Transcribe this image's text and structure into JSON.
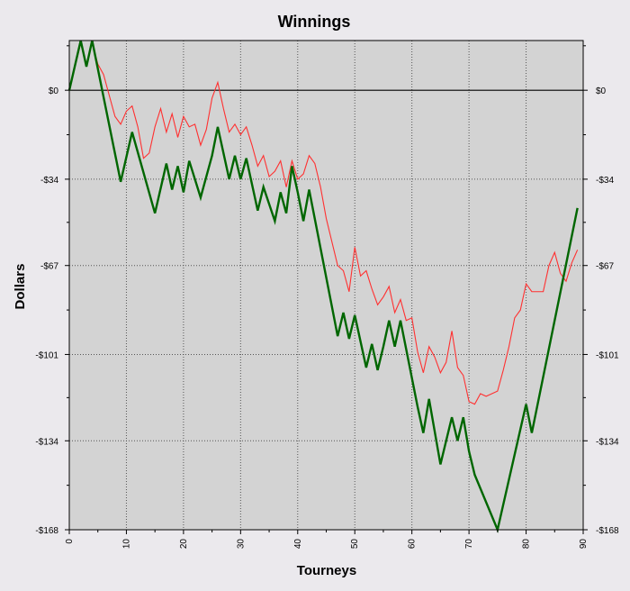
{
  "chart_data": {
    "type": "line",
    "title": "Winnings",
    "xlabel": "Tourneys",
    "ylabel": "Dollars",
    "xlim": [
      0,
      90
    ],
    "ylim": [
      -168,
      19
    ],
    "x_ticks": [
      0,
      10,
      20,
      30,
      40,
      50,
      60,
      70,
      80,
      90
    ],
    "y_ticks": [
      {
        "value": 0,
        "label": "$0"
      },
      {
        "value": -34,
        "label": "-$34"
      },
      {
        "value": -67,
        "label": "-$67"
      },
      {
        "value": -101,
        "label": "-$101"
      },
      {
        "value": -134,
        "label": "-$134"
      },
      {
        "value": -168,
        "label": "-$168"
      }
    ],
    "zero_line": 0,
    "grid": true,
    "colors": {
      "plot_background": "#d3d3d3",
      "page_background": "#ebe9ed",
      "primary_series": "#006600",
      "secondary_series": "#ff3030",
      "zero_line": "#000000",
      "grid": "#555555"
    },
    "series": [
      {
        "key": "primary",
        "color": "#006600",
        "x": [
          0,
          2,
          3,
          4,
          9,
          11,
          15,
          17,
          18,
          19,
          20,
          21,
          23,
          25,
          26,
          28,
          29,
          30,
          31,
          33,
          34,
          36,
          37,
          38,
          39,
          40,
          41,
          42,
          47,
          48,
          49,
          50,
          52,
          53,
          54,
          55,
          56,
          57,
          58,
          61,
          62,
          63,
          65,
          67,
          68,
          69,
          70,
          71,
          75,
          80,
          81,
          89
        ],
        "y": [
          0,
          19,
          9,
          19,
          -35,
          -16,
          -47,
          -28,
          -38,
          -29,
          -39,
          -27,
          -41,
          -25,
          -14,
          -34,
          -25,
          -34,
          -26,
          -46,
          -37,
          -50,
          -39,
          -47,
          -29,
          -39,
          -50,
          -38,
          -94,
          -85,
          -95,
          -86,
          -106,
          -97,
          -107,
          -98,
          -88,
          -98,
          -88,
          -121,
          -131,
          -118,
          -143,
          -125,
          -134,
          -125,
          -138,
          -147,
          -168,
          -120,
          -131,
          -45
        ]
      },
      {
        "key": "secondary",
        "color": "#ff3030",
        "x": [
          0,
          2,
          3,
          4,
          5,
          6,
          7,
          8,
          9,
          10,
          11,
          12,
          13,
          14,
          15,
          16,
          17,
          18,
          19,
          20,
          21,
          22,
          23,
          24,
          25,
          26,
          27,
          28,
          29,
          30,
          31,
          32,
          33,
          34,
          35,
          36,
          37,
          38,
          39,
          40,
          41,
          42,
          43,
          44,
          45,
          46,
          47,
          48,
          49,
          50,
          51,
          52,
          53,
          54,
          55,
          56,
          57,
          58,
          59,
          60,
          61,
          62,
          63,
          64,
          65,
          66,
          67,
          68,
          69,
          70,
          71,
          72,
          73,
          74,
          75,
          76,
          77,
          78,
          79,
          80,
          81,
          82,
          83,
          84,
          85,
          86,
          87,
          88,
          89
        ],
        "y": [
          0,
          18,
          10,
          18,
          10,
          6,
          -2,
          -10,
          -13,
          -8,
          -6,
          -14,
          -26,
          -24,
          -14,
          -7,
          -16,
          -9,
          -18,
          -10,
          -14,
          -13,
          -21,
          -15,
          -3,
          3,
          -7,
          -16,
          -13,
          -17,
          -14,
          -21,
          -29,
          -25,
          -33,
          -31,
          -27,
          -37,
          -27,
          -34,
          -32,
          -25,
          -28,
          -37,
          -49,
          -58,
          -67,
          -69,
          -77,
          -60,
          -71,
          -69,
          -76,
          -82,
          -79,
          -75,
          -85,
          -80,
          -88,
          -87,
          -100,
          -108,
          -98,
          -102,
          -108,
          -104,
          -92,
          -106,
          -109,
          -119,
          -120,
          -116,
          -117,
          -116,
          -115,
          -107,
          -98,
          -87,
          -84,
          -74,
          -77,
          -77,
          -77,
          -67,
          -62,
          -70,
          -73,
          -66,
          -61
        ]
      }
    ]
  }
}
